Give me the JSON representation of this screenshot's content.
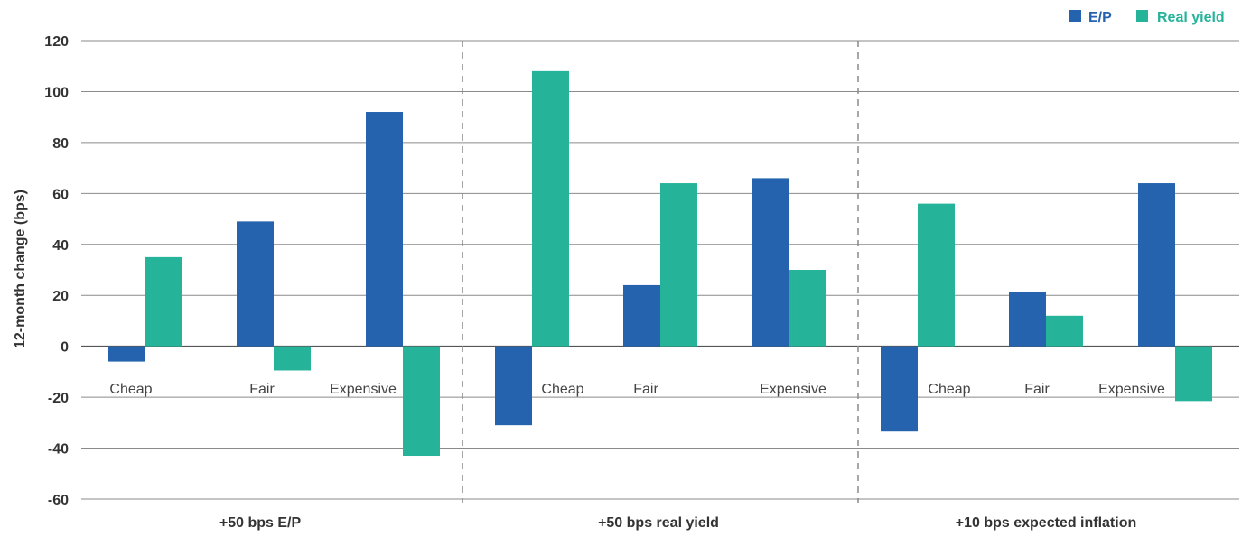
{
  "chart_data": {
    "type": "bar",
    "ylabel": "12-month change (bps)",
    "ylim": [
      -60,
      120
    ],
    "yticks": [
      120,
      100,
      80,
      60,
      40,
      20,
      0,
      -20,
      -40,
      -60
    ],
    "grid": true,
    "legend_position": "top-right",
    "colors": {
      "E/P": "#2563ae",
      "Real yield": "#25b39a",
      "legend_text_E/P": "#2563ae",
      "legend_text_Real yield": "#25b39a"
    },
    "series_names": [
      "E/P",
      "Real yield"
    ],
    "groups": [
      {
        "name": "+50 bps E/P",
        "categories": [
          "Cheap",
          "Fair",
          "Expensive"
        ],
        "series": [
          {
            "name": "E/P",
            "values": [
              -6,
              49,
              92
            ]
          },
          {
            "name": "Real yield",
            "values": [
              35,
              -9.5,
              -43
            ]
          }
        ]
      },
      {
        "name": "+50 bps real yield",
        "categories": [
          "Cheap",
          "Fair",
          "Expensive"
        ],
        "series": [
          {
            "name": "E/P",
            "values": [
              -31,
              24,
              66
            ]
          },
          {
            "name": "Real yield",
            "values": [
              108,
              64,
              30
            ]
          }
        ]
      },
      {
        "name": "+10 bps expected inflation",
        "categories": [
          "Cheap",
          "Fair",
          "Expensive"
        ],
        "series": [
          {
            "name": "E/P",
            "values": [
              -33.5,
              21.5,
              64
            ]
          },
          {
            "name": "Real yield",
            "values": [
              56,
              12,
              -21.5
            ]
          }
        ]
      }
    ]
  }
}
